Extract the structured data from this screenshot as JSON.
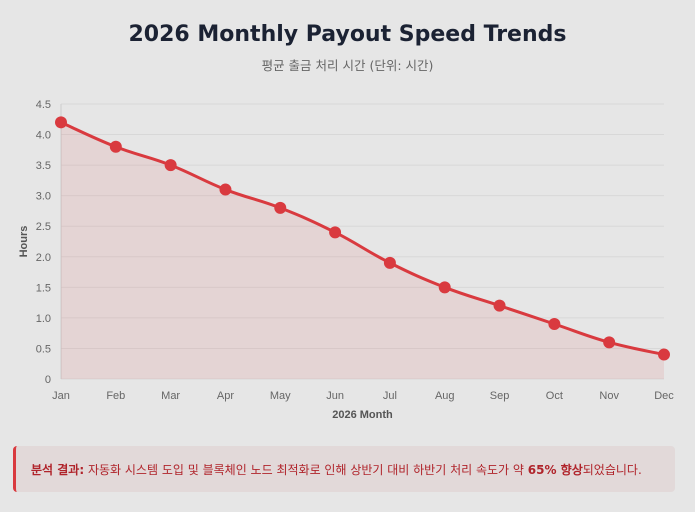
{
  "chart_data": {
    "type": "line",
    "title": "2026 Monthly Payout Speed Trends",
    "subtitle": "평균 출금 처리 시간 (단위: 시간)",
    "xlabel": "2026 Month",
    "ylabel": "Hours",
    "categories": [
      "Jan",
      "Feb",
      "Mar",
      "Apr",
      "May",
      "Jun",
      "Jul",
      "Aug",
      "Sep",
      "Oct",
      "Nov",
      "Dec"
    ],
    "values": [
      4.2,
      3.8,
      3.5,
      3.1,
      2.8,
      2.4,
      1.9,
      1.5,
      1.2,
      0.9,
      0.6,
      0.4
    ],
    "ylim": [
      0,
      4.5
    ],
    "yticks": [
      "0",
      "0.5",
      "1.0",
      "1.5",
      "2.0",
      "2.5",
      "3.0",
      "3.5",
      "4.0",
      "4.5"
    ],
    "grid": true,
    "fill": true,
    "color": "#d93a3f"
  },
  "callout": {
    "label": "분석 결과:",
    "text1": " 자동화 시스템 도입 및 블록체인 노드 최적화로 인해 상반기 대비 하반기 처리 속도가 약 ",
    "highlight": "65% 향상",
    "text2": "되었습니다."
  }
}
